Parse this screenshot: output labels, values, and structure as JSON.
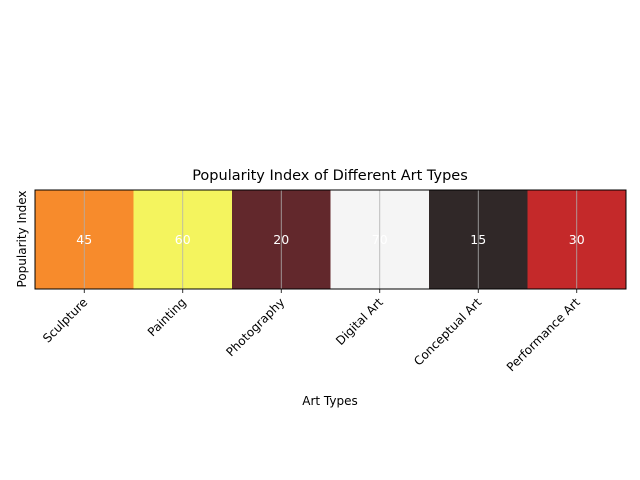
{
  "chart_data": {
    "type": "heatmap",
    "title": "Popularity Index of Different Art Types",
    "xlabel": "Art Types",
    "ylabel": "Popularity Index",
    "categories": [
      "Sculpture",
      "Painting",
      "Photography",
      "Digital Art",
      "Conceptual Art",
      "Performance Art"
    ],
    "values": [
      45,
      60,
      20,
      70,
      15,
      30
    ],
    "colormap": "hot",
    "cell_colors": [
      "#f78b2c",
      "#f4f45e",
      "#62282c",
      "#f5f5f5",
      "#302828",
      "#c4292a"
    ],
    "value_label_color": "#ffffff",
    "grid": true,
    "grid_color": "#b0b0b0"
  }
}
